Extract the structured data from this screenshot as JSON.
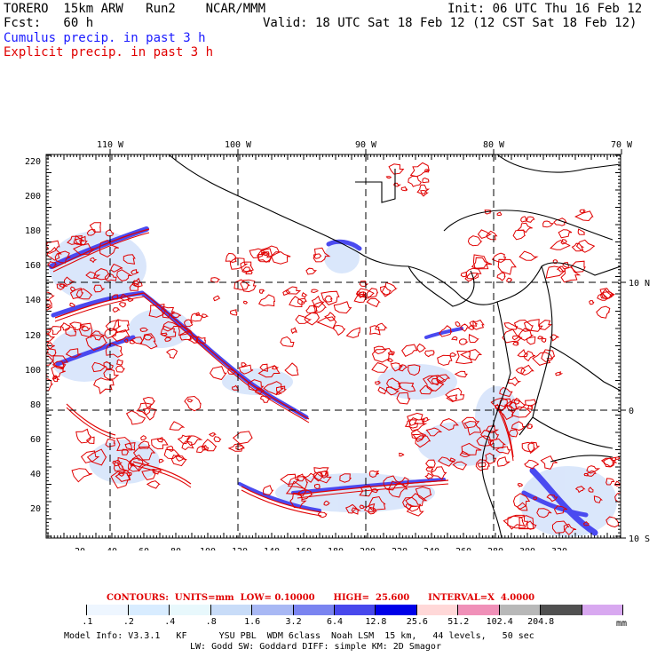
{
  "header": {
    "model": "TORERO  15km ARW   Run2    NCAR/MMM",
    "fcst": "Fcst:   60 h",
    "init": "Init: 06 UTC Thu 16 Feb 12",
    "valid": "Valid: 18 UTC Sat 18 Feb 12 (12 CST Sat 18 Feb 12)",
    "cumulus": "Cumulus precip. in past 3 h",
    "explicit": "Explicit precip. in past 3 h"
  },
  "map": {
    "lon_labels": [
      "110 W",
      "100 W",
      "90 W",
      "80 W",
      "70 W"
    ],
    "lat_labels": [
      "10 N",
      "0",
      "10 S"
    ],
    "y_ticks": [
      "220",
      "200",
      "180",
      "160",
      "140",
      "120",
      "100",
      "80",
      "60",
      "40",
      "20"
    ],
    "x_ticks": [
      "20",
      "40",
      "60",
      "80",
      "100",
      "120",
      "140",
      "160",
      "180",
      "200",
      "220",
      "240",
      "260",
      "280",
      "300",
      "320"
    ],
    "colors": {
      "cumulus": "#3a3aff",
      "explicit": "#e00000",
      "grid": "#000000",
      "coast": "#000000"
    }
  },
  "contours": {
    "text": "CONTOURS:  UNITS=mm  LOW= 0.10000      HIGH=  25.600      INTERVAL=X  4.0000"
  },
  "legend": {
    "labels": [
      ".1",
      ".2",
      ".4",
      ".8",
      "1.6",
      "3.2",
      "6.4",
      "12.8",
      "25.6",
      "51.2",
      "102.4",
      "204.8"
    ],
    "unit": "mm",
    "colors": [
      "#ffffff",
      "#eef6ff",
      "#d8ecff",
      "#e8f8fc",
      "#c8dcf8",
      "#a8b8f4",
      "#7a84f0",
      "#4848ec",
      "#0000e8",
      "#ffd8d8",
      "#f090b8",
      "#b8b8b8",
      "#505050",
      "#d8a8f0"
    ]
  },
  "footer": {
    "line1": "Model Info: V3.3.1   KF      YSU PBL  WDM 6class  Noah LSM  15 km,   44 levels,   50 sec",
    "line2": "LW: Godd SW: Goddard DIFF: simple KM: 2D Smagor"
  }
}
